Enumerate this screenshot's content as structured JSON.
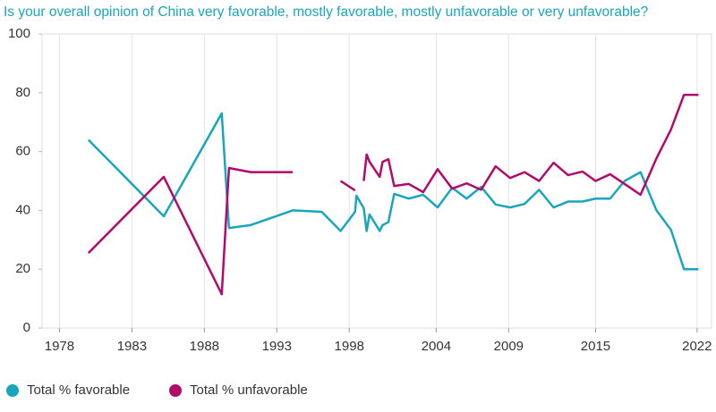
{
  "chart_data": {
    "type": "line",
    "title": "Is your overall opinion of China very favorable, mostly favorable, mostly unfavorable or very unfavorable?",
    "x": [
      1980,
      1985.2,
      1989.2,
      1989.7,
      1991.2,
      1994.1,
      1996.1,
      1997.4,
      1998.4,
      1998.5,
      1999.0,
      1999.2,
      1999.4,
      2000.1,
      2000.3,
      2000.7,
      2001.1,
      2002.1,
      2003.1,
      2004.1,
      2005.1,
      2006.1,
      2007.1,
      2008.1,
      2009.1,
      2010.1,
      2011.1,
      2012.1,
      2013.1,
      2014.1,
      2015.0,
      2016.0,
      2017.0,
      2018.1,
      2019.2,
      2020.2,
      2021.1,
      2022.1
    ],
    "series": [
      {
        "name": "Total % favorable",
        "color": "#19a6bd",
        "values": [
          64,
          38,
          73,
          34,
          35,
          40,
          39.5,
          33,
          39.5,
          45,
          40.7,
          33,
          38.6,
          33,
          35,
          36,
          45.6,
          44,
          45.3,
          41,
          47.7,
          44,
          48,
          42,
          41,
          42.2,
          47,
          41,
          43,
          43,
          44,
          44,
          50,
          53,
          40,
          33.4,
          20,
          20
        ]
      },
      {
        "name": "Total % unfavorable",
        "color": "#b10a6b",
        "values": [
          25.5,
          51.4,
          11.5,
          54.4,
          53,
          53,
          null,
          50,
          46.8,
          null,
          50,
          59,
          56.5,
          51.4,
          56.5,
          57.4,
          48.3,
          49,
          46.2,
          54,
          47.4,
          49.2,
          47,
          55,
          51,
          53,
          50,
          56.2,
          52,
          53.2,
          50,
          52.3,
          49,
          45.3,
          57.7,
          67.5,
          79.3,
          79.3
        ]
      }
    ],
    "xlim": [
      1976.8,
      2023
    ],
    "ylim": [
      0,
      100
    ],
    "xticks": [
      1978,
      1983,
      1988,
      1993,
      1998,
      2004,
      2009,
      2015,
      2022
    ],
    "yticks": [
      0,
      20,
      40,
      60,
      80,
      100
    ],
    "grid": true,
    "legend": "bottom"
  }
}
